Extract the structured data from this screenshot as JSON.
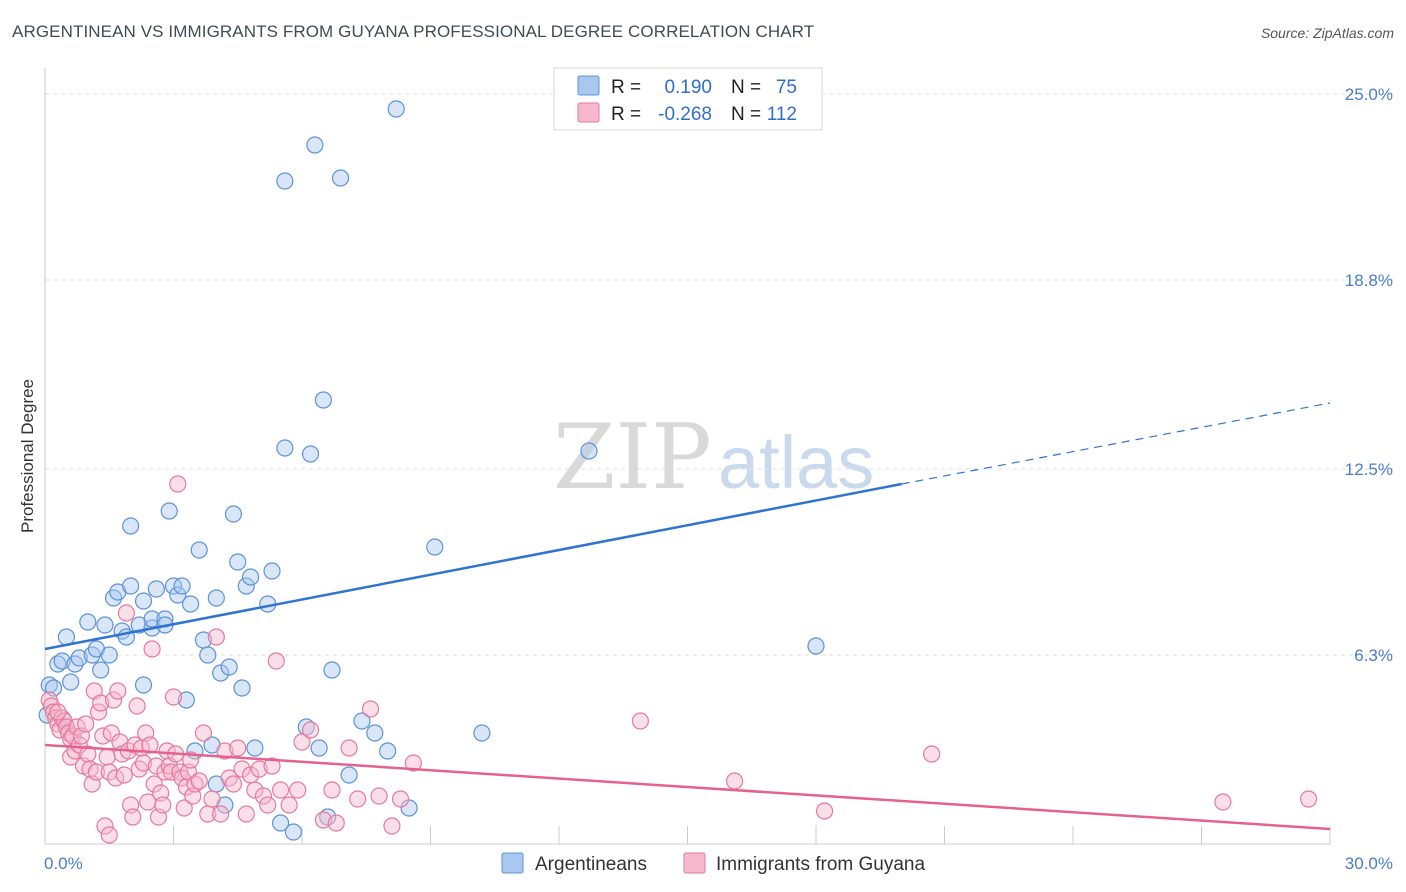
{
  "title": "ARGENTINEAN VS IMMIGRANTS FROM GUYANA PROFESSIONAL DEGREE CORRELATION CHART",
  "source": "Source: ZipAtlas.com",
  "watermark": {
    "zip": "ZIP",
    "atlas": "atlas"
  },
  "colors": {
    "blue_fill": "#a9c8ef",
    "blue_stroke": "#5d93d6",
    "blue_line": "#2f74d0",
    "pink_fill": "#f6b9cc",
    "pink_stroke": "#e47a9d",
    "pink_line": "#e4628f",
    "grid": "#dddddd",
    "tick": "#4a7cc9"
  },
  "legend": {
    "rows": [
      {
        "r_label": "R =",
        "r_value": "0.190",
        "n_label": "N =",
        "n_value": "75"
      },
      {
        "r_label": "R =",
        "r_value": "-0.268",
        "n_label": "N =",
        "n_value": "112"
      }
    ]
  },
  "bottom_legend": [
    "Argentineans",
    "Immigrants from Guyana"
  ],
  "chart_data": {
    "type": "scatter",
    "title": "ARGENTINEAN VS IMMIGRANTS FROM GUYANA PROFESSIONAL DEGREE CORRELATION CHART",
    "xlabel": "",
    "ylabel": "Professional Degree",
    "xlim": [
      0,
      30
    ],
    "ylim": [
      0,
      25.5
    ],
    "x_tick_labels": [
      "0.0%",
      "30.0%"
    ],
    "y_ticks": [
      6.3,
      12.5,
      18.8,
      25.0
    ],
    "y_tick_labels": [
      "6.3%",
      "12.5%",
      "18.8%",
      "25.0%"
    ],
    "grid": "horizontal dashed",
    "legend_position": "top-center",
    "series": [
      {
        "name": "Argentineans",
        "r": 0.19,
        "n": 75,
        "trend": {
          "x0": 0,
          "y0": 6.5,
          "x1": 20,
          "y1": 12.0,
          "dashed_to_x": 30,
          "dashed_to_y": 14.7
        },
        "points": [
          [
            0.1,
            5.3
          ],
          [
            0.2,
            5.2
          ],
          [
            0.3,
            6.0
          ],
          [
            0.4,
            6.1
          ],
          [
            0.5,
            6.9
          ],
          [
            0.6,
            5.4
          ],
          [
            0.7,
            6.0
          ],
          [
            0.8,
            6.2
          ],
          [
            1.0,
            7.4
          ],
          [
            1.1,
            6.3
          ],
          [
            1.2,
            6.5
          ],
          [
            1.3,
            5.8
          ],
          [
            1.4,
            7.3
          ],
          [
            1.5,
            6.3
          ],
          [
            1.6,
            8.2
          ],
          [
            1.7,
            8.4
          ],
          [
            1.8,
            7.1
          ],
          [
            1.9,
            6.9
          ],
          [
            2.0,
            10.6
          ],
          [
            2.0,
            8.6
          ],
          [
            2.2,
            7.3
          ],
          [
            2.3,
            5.3
          ],
          [
            2.3,
            8.1
          ],
          [
            2.5,
            7.2
          ],
          [
            2.5,
            7.5
          ],
          [
            2.6,
            8.5
          ],
          [
            2.8,
            7.5
          ],
          [
            2.8,
            7.3
          ],
          [
            2.9,
            11.1
          ],
          [
            3.0,
            8.6
          ],
          [
            3.1,
            8.3
          ],
          [
            3.2,
            8.6
          ],
          [
            3.3,
            4.8
          ],
          [
            3.4,
            8.0
          ],
          [
            3.5,
            3.1
          ],
          [
            3.6,
            9.8
          ],
          [
            3.7,
            6.8
          ],
          [
            3.8,
            6.3
          ],
          [
            3.9,
            3.3
          ],
          [
            4.0,
            8.2
          ],
          [
            4.0,
            2.0
          ],
          [
            4.1,
            5.7
          ],
          [
            4.2,
            1.3
          ],
          [
            4.3,
            5.9
          ],
          [
            4.4,
            11.0
          ],
          [
            4.5,
            9.4
          ],
          [
            4.6,
            5.2
          ],
          [
            4.7,
            8.6
          ],
          [
            4.8,
            8.9
          ],
          [
            4.9,
            3.2
          ],
          [
            5.2,
            8.0
          ],
          [
            5.3,
            9.1
          ],
          [
            5.5,
            0.7
          ],
          [
            5.6,
            13.2
          ],
          [
            5.6,
            22.1
          ],
          [
            5.8,
            0.4
          ],
          [
            6.1,
            3.9
          ],
          [
            6.2,
            13.0
          ],
          [
            6.3,
            23.3
          ],
          [
            6.4,
            3.2
          ],
          [
            6.5,
            14.8
          ],
          [
            6.6,
            0.9
          ],
          [
            6.7,
            5.8
          ],
          [
            6.9,
            22.2
          ],
          [
            7.1,
            2.3
          ],
          [
            7.4,
            4.1
          ],
          [
            7.7,
            3.7
          ],
          [
            8.0,
            3.1
          ],
          [
            8.2,
            24.5
          ],
          [
            8.5,
            1.2
          ],
          [
            9.1,
            9.9
          ],
          [
            10.2,
            3.7
          ],
          [
            12.7,
            13.1
          ],
          [
            18.0,
            6.6
          ],
          [
            0.05,
            4.3
          ]
        ]
      },
      {
        "name": "Immigrants from Guyana",
        "r": -0.268,
        "n": 112,
        "trend": {
          "x0": 0,
          "y0": 3.3,
          "x1": 30,
          "y1": 0.5
        },
        "points": [
          [
            0.1,
            4.8
          ],
          [
            0.15,
            4.6
          ],
          [
            0.2,
            4.4
          ],
          [
            0.25,
            4.2
          ],
          [
            0.3,
            4.0
          ],
          [
            0.35,
            3.8
          ],
          [
            0.4,
            4.2
          ],
          [
            0.45,
            4.1
          ],
          [
            0.5,
            3.9
          ],
          [
            0.55,
            3.7
          ],
          [
            0.6,
            3.5
          ],
          [
            0.6,
            2.9
          ],
          [
            0.65,
            3.6
          ],
          [
            0.7,
            3.1
          ],
          [
            0.75,
            3.9
          ],
          [
            0.8,
            3.3
          ],
          [
            0.85,
            3.6
          ],
          [
            0.9,
            2.6
          ],
          [
            0.95,
            4.0
          ],
          [
            1.0,
            3.0
          ],
          [
            1.05,
            2.5
          ],
          [
            1.1,
            2.0
          ],
          [
            1.15,
            5.1
          ],
          [
            1.2,
            2.4
          ],
          [
            1.25,
            4.4
          ],
          [
            1.3,
            4.7
          ],
          [
            1.35,
            3.6
          ],
          [
            1.4,
            0.6
          ],
          [
            1.45,
            2.9
          ],
          [
            1.5,
            2.4
          ],
          [
            1.55,
            3.7
          ],
          [
            1.6,
            4.8
          ],
          [
            1.65,
            2.2
          ],
          [
            1.7,
            5.1
          ],
          [
            1.75,
            3.4
          ],
          [
            1.8,
            3.0
          ],
          [
            1.85,
            2.3
          ],
          [
            1.9,
            7.7
          ],
          [
            1.95,
            3.1
          ],
          [
            2.0,
            1.3
          ],
          [
            2.05,
            0.9
          ],
          [
            2.1,
            3.3
          ],
          [
            2.15,
            4.6
          ],
          [
            2.2,
            2.5
          ],
          [
            2.25,
            3.2
          ],
          [
            2.3,
            2.7
          ],
          [
            2.35,
            3.7
          ],
          [
            2.4,
            1.4
          ],
          [
            2.45,
            3.3
          ],
          [
            2.5,
            6.5
          ],
          [
            2.55,
            2.0
          ],
          [
            2.6,
            2.6
          ],
          [
            2.65,
            0.9
          ],
          [
            2.7,
            1.7
          ],
          [
            2.75,
            1.3
          ],
          [
            2.8,
            2.4
          ],
          [
            2.85,
            3.1
          ],
          [
            2.9,
            2.6
          ],
          [
            2.95,
            2.4
          ],
          [
            3.0,
            4.9
          ],
          [
            3.05,
            3.0
          ],
          [
            3.1,
            12.0
          ],
          [
            3.15,
            2.4
          ],
          [
            3.2,
            2.2
          ],
          [
            3.25,
            1.2
          ],
          [
            3.3,
            1.9
          ],
          [
            3.35,
            2.4
          ],
          [
            3.4,
            2.8
          ],
          [
            3.45,
            1.6
          ],
          [
            3.5,
            2.0
          ],
          [
            3.6,
            2.1
          ],
          [
            3.7,
            3.7
          ],
          [
            3.8,
            1.0
          ],
          [
            3.9,
            1.5
          ],
          [
            4.0,
            6.9
          ],
          [
            4.1,
            1.0
          ],
          [
            4.2,
            3.1
          ],
          [
            4.3,
            2.2
          ],
          [
            4.4,
            2.0
          ],
          [
            4.5,
            3.2
          ],
          [
            4.6,
            2.5
          ],
          [
            4.7,
            1.0
          ],
          [
            4.8,
            2.3
          ],
          [
            4.9,
            1.8
          ],
          [
            5.0,
            2.5
          ],
          [
            5.1,
            1.6
          ],
          [
            5.2,
            1.3
          ],
          [
            5.3,
            2.6
          ],
          [
            5.4,
            6.1
          ],
          [
            5.5,
            1.8
          ],
          [
            5.7,
            1.3
          ],
          [
            5.9,
            1.8
          ],
          [
            6.0,
            3.4
          ],
          [
            6.2,
            3.8
          ],
          [
            6.5,
            0.8
          ],
          [
            6.7,
            1.8
          ],
          [
            6.8,
            0.7
          ],
          [
            7.1,
            3.2
          ],
          [
            7.3,
            1.5
          ],
          [
            7.6,
            4.5
          ],
          [
            7.8,
            1.6
          ],
          [
            8.1,
            0.6
          ],
          [
            8.3,
            1.5
          ],
          [
            8.6,
            2.7
          ],
          [
            13.9,
            4.1
          ],
          [
            16.1,
            2.1
          ],
          [
            18.2,
            1.1
          ],
          [
            20.7,
            3.0
          ],
          [
            27.5,
            1.4
          ],
          [
            29.5,
            1.5
          ],
          [
            1.5,
            0.3
          ],
          [
            0.3,
            4.4
          ]
        ]
      }
    ]
  }
}
